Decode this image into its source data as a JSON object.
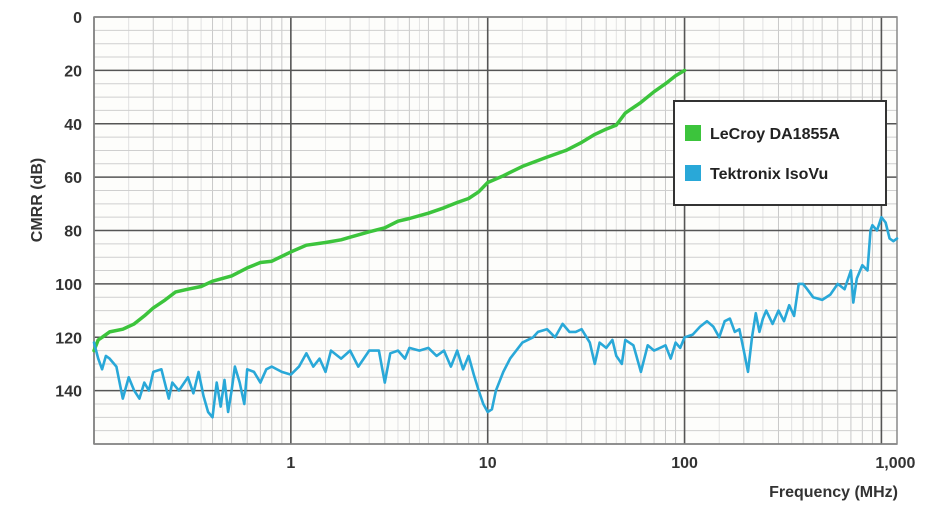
{
  "chart_data": {
    "type": "line",
    "title": "",
    "xlabel": "Frequency (MHz)",
    "ylabel": "CMRR (dB)",
    "x_scale": "log",
    "xlim": [
      0.1,
      1200
    ],
    "ylim": [
      0,
      160
    ],
    "y_inverted": true,
    "x_tick_values": [
      1,
      10,
      100,
      1000
    ],
    "x_tick_labels": [
      "1",
      "10",
      "100",
      "1,000"
    ],
    "y_tick_values": [
      0,
      20,
      40,
      60,
      80,
      100,
      120,
      140
    ],
    "y_tick_labels": [
      "0",
      "20",
      "40",
      "60",
      "80",
      "100",
      "120",
      "140"
    ],
    "grid": true,
    "legend_position": "top-right",
    "series": [
      {
        "name": "LeCroy DA1855A",
        "color": "#3cc43c",
        "points": [
          [
            0.1,
            125
          ],
          [
            0.105,
            121
          ],
          [
            0.11,
            120
          ],
          [
            0.12,
            118
          ],
          [
            0.14,
            117
          ],
          [
            0.16,
            115
          ],
          [
            0.18,
            112
          ],
          [
            0.2,
            109
          ],
          [
            0.23,
            106
          ],
          [
            0.26,
            103
          ],
          [
            0.3,
            102
          ],
          [
            0.35,
            101
          ],
          [
            0.4,
            99
          ],
          [
            0.5,
            97
          ],
          [
            0.6,
            94
          ],
          [
            0.7,
            92
          ],
          [
            0.8,
            91.5
          ],
          [
            1.0,
            88
          ],
          [
            1.2,
            85.5
          ],
          [
            1.5,
            84.5
          ],
          [
            1.8,
            83.5
          ],
          [
            2.0,
            82.5
          ],
          [
            2.5,
            80.5
          ],
          [
            3.0,
            79
          ],
          [
            3.5,
            76.5
          ],
          [
            4.0,
            75.5
          ],
          [
            5.0,
            73.5
          ],
          [
            6.0,
            71.5
          ],
          [
            7.0,
            69.5
          ],
          [
            8.0,
            68
          ],
          [
            9.0,
            65.5
          ],
          [
            10.0,
            62
          ],
          [
            12.0,
            59.5
          ],
          [
            15.0,
            56
          ],
          [
            20.0,
            52.5
          ],
          [
            25.0,
            50
          ],
          [
            30.0,
            47
          ],
          [
            35.0,
            44
          ],
          [
            40.0,
            42
          ],
          [
            45.0,
            40.5
          ],
          [
            50.0,
            36
          ],
          [
            60.0,
            32
          ],
          [
            70.0,
            28
          ],
          [
            80.0,
            25
          ],
          [
            90.0,
            22
          ],
          [
            100.0,
            20
          ]
        ]
      },
      {
        "name": "Tektronix IsoVu",
        "color": "#29a8d8",
        "points": [
          [
            0.1,
            122
          ],
          [
            0.105,
            128
          ],
          [
            0.11,
            132
          ],
          [
            0.115,
            127
          ],
          [
            0.12,
            128
          ],
          [
            0.13,
            131
          ],
          [
            0.14,
            143
          ],
          [
            0.15,
            135
          ],
          [
            0.16,
            140
          ],
          [
            0.17,
            143
          ],
          [
            0.18,
            137
          ],
          [
            0.19,
            140
          ],
          [
            0.2,
            133
          ],
          [
            0.22,
            132
          ],
          [
            0.24,
            143
          ],
          [
            0.25,
            137
          ],
          [
            0.27,
            140
          ],
          [
            0.3,
            135
          ],
          [
            0.32,
            141
          ],
          [
            0.34,
            133
          ],
          [
            0.36,
            142
          ],
          [
            0.38,
            148
          ],
          [
            0.4,
            150
          ],
          [
            0.42,
            137
          ],
          [
            0.44,
            146
          ],
          [
            0.46,
            136
          ],
          [
            0.48,
            148
          ],
          [
            0.5,
            140
          ],
          [
            0.52,
            131
          ],
          [
            0.55,
            137
          ],
          [
            0.58,
            145
          ],
          [
            0.6,
            132
          ],
          [
            0.65,
            133
          ],
          [
            0.7,
            137
          ],
          [
            0.75,
            132
          ],
          [
            0.8,
            131
          ],
          [
            0.9,
            133
          ],
          [
            1.0,
            134
          ],
          [
            1.1,
            131
          ],
          [
            1.2,
            126
          ],
          [
            1.3,
            131
          ],
          [
            1.4,
            128
          ],
          [
            1.5,
            133
          ],
          [
            1.6,
            125
          ],
          [
            1.8,
            128
          ],
          [
            2.0,
            125
          ],
          [
            2.2,
            131
          ],
          [
            2.5,
            125
          ],
          [
            2.8,
            125
          ],
          [
            3.0,
            137
          ],
          [
            3.2,
            126
          ],
          [
            3.5,
            125
          ],
          [
            3.8,
            128
          ],
          [
            4.0,
            124
          ],
          [
            4.5,
            125
          ],
          [
            5.0,
            124
          ],
          [
            5.5,
            127
          ],
          [
            6.0,
            125
          ],
          [
            6.5,
            131
          ],
          [
            7.0,
            125
          ],
          [
            7.5,
            132
          ],
          [
            8.0,
            127
          ],
          [
            8.5,
            134
          ],
          [
            9.0,
            140
          ],
          [
            9.5,
            145
          ],
          [
            10.0,
            148
          ],
          [
            10.5,
            147
          ],
          [
            11.0,
            140
          ],
          [
            12.0,
            133
          ],
          [
            13.0,
            128
          ],
          [
            15.0,
            122
          ],
          [
            17.0,
            120
          ],
          [
            18.0,
            118
          ],
          [
            20.0,
            117
          ],
          [
            22.0,
            120
          ],
          [
            24.0,
            115
          ],
          [
            26.0,
            118
          ],
          [
            28.0,
            118
          ],
          [
            30.0,
            117
          ],
          [
            33.0,
            122
          ],
          [
            35.0,
            130
          ],
          [
            37.0,
            122
          ],
          [
            40.0,
            124
          ],
          [
            43.0,
            121
          ],
          [
            45.0,
            127
          ],
          [
            48.0,
            130
          ],
          [
            50.0,
            121
          ],
          [
            55.0,
            123
          ],
          [
            60.0,
            133
          ],
          [
            65.0,
            123
          ],
          [
            70.0,
            125
          ],
          [
            75.0,
            124
          ],
          [
            80.0,
            123
          ],
          [
            85.0,
            128
          ],
          [
            90.0,
            122
          ],
          [
            95.0,
            124
          ],
          [
            100.0,
            120
          ],
          [
            110.0,
            119
          ],
          [
            120.0,
            116
          ],
          [
            130.0,
            114
          ],
          [
            140.0,
            116
          ],
          [
            150.0,
            120
          ],
          [
            160.0,
            114
          ],
          [
            170.0,
            113
          ],
          [
            180.0,
            118
          ],
          [
            190.0,
            117
          ],
          [
            200.0,
            125
          ],
          [
            210.0,
            133
          ],
          [
            220.0,
            120
          ],
          [
            230.0,
            111
          ],
          [
            240.0,
            118
          ],
          [
            250.0,
            113
          ],
          [
            260.0,
            110
          ],
          [
            280.0,
            115
          ],
          [
            300.0,
            110
          ],
          [
            320.0,
            114
          ],
          [
            340.0,
            108
          ],
          [
            360.0,
            112
          ],
          [
            380.0,
            100
          ],
          [
            400.0,
            100
          ],
          [
            420.0,
            102
          ],
          [
            450.0,
            105
          ],
          [
            500.0,
            106
          ],
          [
            550.0,
            104
          ],
          [
            600.0,
            100
          ],
          [
            650.0,
            102
          ],
          [
            700.0,
            95
          ],
          [
            720.0,
            107
          ],
          [
            750.0,
            98
          ],
          [
            800.0,
            93
          ],
          [
            850.0,
            95
          ],
          [
            880.0,
            80
          ],
          [
            900.0,
            78
          ],
          [
            950.0,
            80
          ],
          [
            1000.0,
            75
          ],
          [
            1050.0,
            77
          ],
          [
            1100.0,
            83
          ],
          [
            1150.0,
            84
          ],
          [
            1200.0,
            83
          ]
        ]
      }
    ]
  }
}
